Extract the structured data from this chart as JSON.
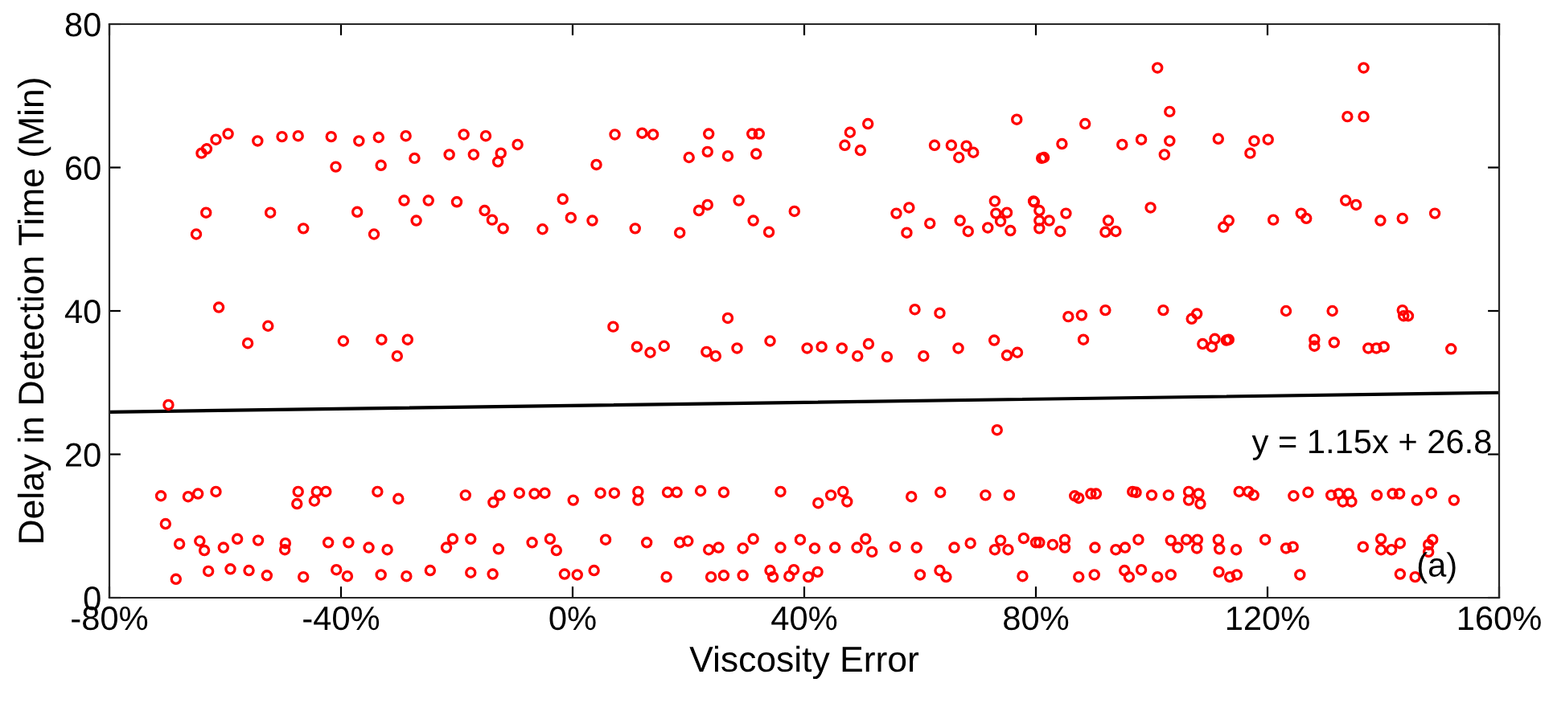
{
  "chart_data": {
    "type": "scatter",
    "xlabel": "Viscosity Error",
    "ylabel": "Delay in Detection Time (Min)",
    "xlim": [
      -80,
      160
    ],
    "ylim": [
      0,
      80
    ],
    "xticks": [
      {
        "value": -80,
        "label": "-80%"
      },
      {
        "value": -40,
        "label": "-40%"
      },
      {
        "value": 0,
        "label": "0%"
      },
      {
        "value": 40,
        "label": "40%"
      },
      {
        "value": 80,
        "label": "80%"
      },
      {
        "value": 120,
        "label": "120%"
      },
      {
        "value": 160,
        "label": "160%"
      }
    ],
    "yticks": [
      0,
      20,
      40,
      60,
      80
    ],
    "grid": false,
    "legend": false,
    "annotations": [
      "y = 1.15x + 26.8",
      "(a)"
    ],
    "series": [
      {
        "color": "#ff0000",
        "marker": "circle",
        "x": [
          -64.1,
          -63.2,
          -61.6,
          -59.5,
          -54.4,
          -50.2,
          -47.4,
          -41.7,
          -36.9,
          -33.5,
          -28.8,
          -18.8,
          -15.0,
          -9.5,
          -40.9,
          -33.1,
          -27.3,
          -21.3,
          -17.1,
          -12.9,
          -12.4,
          -63.3,
          -52.2,
          -65.0,
          -46.5,
          -34.3,
          -37.2,
          -29.1,
          -27.0,
          -24.9,
          -20.0,
          -15.2,
          -13.9,
          -12.0,
          -5.2,
          -1.7,
          -0.3,
          -61.1,
          -56.1,
          -52.6,
          -39.6,
          -33.0,
          -30.3,
          -28.5,
          -69.8,
          -71.1,
          -70.3,
          -68.5,
          -67.9,
          -66.4,
          -64.7,
          -61.6,
          -64.4,
          -63.6,
          -62.9,
          -60.3,
          -59.1,
          -57.9,
          -55.9,
          -54.3,
          -52.8,
          -49.7,
          -49.6,
          -47.6,
          -47.4,
          -46.5,
          -44.6,
          -44.2,
          -42.6,
          -42.2,
          -40.8,
          -38.9,
          -38.7,
          -35.2,
          -33.7,
          -33.1,
          -32.0,
          -30.1,
          -28.7,
          -24.6,
          -21.8,
          -20.7,
          -18.5,
          -17.6,
          -17.6,
          -13.7,
          -12.6,
          -13.8,
          -12.8,
          -9.2,
          -7.0,
          -6.6,
          -4.8,
          -3.9,
          -2.8,
          -1.4,
          0.1,
          7.3,
          12.0,
          13.9,
          23.5,
          31.0,
          32.2,
          4.1,
          20.1,
          23.3,
          26.8,
          31.7,
          47.0,
          47.9,
          51.0,
          49.7,
          62.5,
          65.4,
          66.7,
          68.0,
          69.2,
          76.7,
          81.0,
          3.4,
          10.8,
          18.5,
          21.8,
          23.3,
          28.7,
          31.2,
          33.9,
          38.3,
          55.9,
          58.1,
          57.7,
          61.7,
          66.9,
          68.3,
          71.7,
          72.9,
          73.1,
          75.0,
          73.9,
          75.6,
          79.7,
          80.6,
          7.0,
          11.1,
          13.4,
          15.8,
          23.1,
          24.7,
          26.8,
          28.4,
          34.1,
          40.5,
          43.0,
          46.5,
          49.2,
          51.1,
          54.3,
          59.1,
          60.6,
          63.4,
          66.6,
          72.8,
          75.0,
          76.8,
          73.3,
          0.8,
          3.7,
          4.8,
          5.7,
          7.2,
          11.3,
          11.3,
          12.8,
          16.2,
          16.4,
          18.0,
          18.5,
          19.9,
          22.1,
          23.5,
          23.9,
          25.2,
          26.1,
          26.1,
          29.4,
          29.4,
          31.2,
          34.1,
          34.6,
          35.9,
          35.9,
          37.4,
          38.2,
          39.3,
          40.7,
          42.4,
          42.3,
          41.8,
          44.6,
          45.3,
          46.7,
          47.4,
          49.1,
          50.6,
          51.7,
          55.7,
          58.5,
          59.4,
          60.0,
          63.5,
          63.4,
          64.5,
          65.9,
          68.7,
          71.3,
          72.9,
          73.9,
          75.4,
          75.2,
          77.7,
          77.9,
          80.0,
          101.0,
          136.6,
          103.1,
          133.8,
          136.6,
          88.5,
          84.5,
          81.4,
          94.9,
          98.2,
          102.2,
          103.1,
          111.5,
          117.0,
          117.7,
          120.1,
          79.6,
          80.6,
          80.6,
          82.3,
          84.2,
          85.2,
          92.0,
          92.5,
          93.8,
          99.8,
          112.4,
          113.3,
          121.0,
          125.8,
          126.7,
          133.5,
          135.3,
          139.5,
          143.3,
          148.9,
          85.6,
          87.9,
          88.2,
          92.0,
          102.0,
          106.9,
          107.8,
          108.8,
          110.4,
          110.9,
          112.9,
          113.3,
          123.2,
          128.1,
          128.1,
          131.2,
          131.5,
          137.4,
          138.8,
          140.1,
          143.3,
          143.5,
          144.3,
          151.7,
          80.6,
          82.9,
          85.0,
          85.0,
          86.7,
          87.4,
          89.5,
          90.4,
          87.4,
          90.1,
          90.2,
          93.8,
          95.4,
          95.3,
          96.1,
          96.7,
          97.3,
          97.7,
          98.2,
          100.0,
          101.0,
          102.9,
          103.3,
          103.3,
          104.5,
          106.0,
          106.4,
          106.4,
          107.9,
          107.8,
          108.4,
          108.1,
          111.5,
          111.7,
          111.6,
          113.5,
          114.7,
          114.6,
          115.1,
          116.7,
          117.6,
          119.6,
          123.2,
          124.4,
          124.5,
          125.6,
          127.0,
          131.0,
          132.3,
          133.0,
          134.0,
          134.5,
          136.5,
          138.9,
          139.6,
          139.6,
          141.4,
          141.6,
          142.8,
          142.9,
          142.9,
          145.8,
          147.8,
          148.5,
          147.8,
          148.3,
          145.5,
          152.2
        ],
        "values": [
          62.0,
          62.6,
          63.9,
          64.7,
          63.7,
          64.3,
          64.4,
          64.3,
          63.7,
          64.2,
          64.4,
          64.6,
          64.4,
          63.2,
          60.1,
          60.3,
          61.3,
          61.8,
          61.8,
          60.8,
          62.0,
          53.7,
          53.7,
          50.7,
          51.5,
          50.7,
          53.8,
          55.4,
          52.6,
          55.4,
          55.2,
          54.0,
          52.7,
          51.5,
          51.4,
          55.6,
          53.0,
          40.5,
          35.5,
          37.9,
          35.8,
          36.0,
          33.7,
          36.0,
          26.9,
          14.2,
          10.3,
          2.6,
          7.5,
          14.1,
          14.5,
          14.8,
          7.9,
          6.6,
          3.7,
          7.0,
          4.0,
          8.2,
          3.8,
          8.0,
          3.1,
          6.7,
          7.6,
          13.1,
          14.8,
          2.9,
          13.5,
          14.8,
          14.8,
          7.7,
          3.9,
          3.0,
          7.7,
          7.0,
          14.8,
          3.2,
          6.7,
          13.8,
          3.0,
          3.8,
          7.0,
          8.2,
          14.3,
          3.5,
          8.2,
          13.3,
          14.3,
          3.3,
          6.8,
          14.6,
          7.7,
          14.5,
          14.6,
          8.2,
          6.6,
          3.3,
          13.6,
          64.6,
          64.8,
          64.6,
          64.7,
          64.7,
          64.7,
          60.4,
          61.4,
          62.2,
          61.6,
          61.9,
          63.1,
          64.9,
          66.1,
          62.4,
          63.1,
          63.1,
          61.4,
          63.0,
          62.1,
          66.7,
          61.3,
          52.6,
          51.5,
          50.9,
          54.0,
          54.8,
          55.4,
          52.6,
          51.0,
          53.9,
          53.6,
          54.4,
          50.9,
          52.2,
          52.6,
          51.1,
          51.6,
          55.3,
          53.6,
          53.7,
          52.5,
          51.2,
          55.2,
          52.6,
          37.8,
          35.0,
          34.2,
          35.1,
          34.3,
          33.7,
          39.0,
          34.8,
          35.8,
          34.8,
          35.0,
          34.8,
          33.7,
          35.4,
          33.6,
          40.2,
          33.7,
          39.7,
          34.8,
          35.9,
          33.8,
          34.2,
          23.4,
          3.2,
          3.8,
          14.6,
          8.1,
          14.6,
          14.8,
          13.6,
          7.7,
          2.9,
          14.7,
          14.7,
          7.7,
          7.9,
          14.9,
          6.7,
          2.9,
          7.0,
          14.7,
          3.1,
          3.1,
          6.9,
          8.2,
          3.8,
          2.9,
          14.8,
          7.0,
          3.0,
          3.9,
          8.1,
          2.9,
          13.2,
          3.6,
          6.9,
          14.3,
          7.0,
          14.8,
          13.4,
          7.0,
          8.2,
          6.4,
          7.1,
          14.1,
          7.0,
          3.2,
          14.7,
          3.8,
          2.9,
          7.0,
          7.6,
          14.3,
          6.7,
          8.0,
          14.3,
          6.7,
          3.0,
          8.3,
          7.7,
          73.9,
          73.9,
          67.8,
          67.1,
          67.1,
          66.1,
          63.3,
          61.4,
          63.2,
          63.9,
          61.8,
          63.7,
          64.0,
          62.0,
          63.7,
          63.9,
          55.3,
          54.0,
          51.5,
          52.6,
          51.1,
          53.6,
          51.0,
          52.6,
          51.1,
          54.4,
          51.7,
          52.6,
          52.7,
          53.6,
          52.9,
          55.4,
          54.8,
          52.6,
          52.9,
          53.6,
          39.2,
          39.4,
          36.0,
          40.1,
          40.1,
          38.9,
          39.6,
          35.4,
          35.0,
          36.1,
          35.9,
          36.0,
          40.0,
          36.0,
          35.1,
          40.0,
          35.6,
          34.8,
          34.8,
          35.0,
          40.1,
          39.3,
          39.3,
          34.7,
          7.7,
          7.4,
          8.1,
          7.0,
          14.2,
          13.9,
          14.5,
          14.5,
          2.9,
          3.2,
          7.0,
          6.7,
          7.0,
          3.8,
          2.9,
          14.8,
          14.7,
          8.1,
          3.9,
          14.3,
          2.9,
          14.3,
          8.0,
          3.2,
          7.0,
          8.1,
          14.8,
          13.6,
          8.1,
          6.9,
          13.1,
          14.5,
          8.1,
          6.8,
          3.6,
          2.9,
          3.2,
          6.7,
          14.8,
          14.8,
          14.3,
          8.1,
          6.9,
          7.1,
          14.2,
          3.2,
          14.7,
          14.3,
          14.5,
          13.4,
          14.5,
          13.4,
          7.1,
          14.3,
          8.2,
          6.7,
          6.7,
          14.5,
          14.5,
          7.6,
          3.3,
          13.6,
          7.4,
          8.1,
          6.4,
          14.6,
          2.9,
          13.6
        ]
      },
      {
        "type": "line",
        "color": "#000000",
        "marker": "none",
        "x": [
          -80,
          160
        ],
        "values": [
          25.9,
          28.6
        ]
      }
    ]
  }
}
